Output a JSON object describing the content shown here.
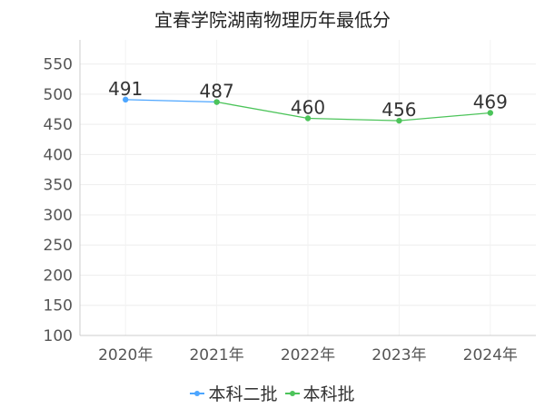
{
  "chart_data": {
    "type": "line",
    "title": "宜春学院湖南物理历年最低分",
    "categories": [
      "2020年",
      "2021年",
      "2022年",
      "2023年",
      "2024年"
    ],
    "y_ticks": [
      "100",
      "150",
      "200",
      "250",
      "300",
      "350",
      "400",
      "450",
      "500",
      "550"
    ],
    "ylim": [
      100,
      590
    ],
    "grid": true,
    "legend_position": "bottom-center",
    "series": [
      {
        "name": "本科二批",
        "color": "#4da6ff",
        "values": [
          491,
          487,
          null,
          null,
          null
        ]
      },
      {
        "name": "本科批",
        "color": "#4cc45a",
        "values": [
          null,
          487,
          460,
          456,
          469
        ]
      }
    ],
    "data_labels": [
      {
        "category": "2020年",
        "value": 491,
        "text": "491"
      },
      {
        "category": "2021年",
        "value": 487,
        "text": "487"
      },
      {
        "category": "2022年",
        "value": 460,
        "text": "460"
      },
      {
        "category": "2023年",
        "value": 456,
        "text": "456"
      },
      {
        "category": "2024年",
        "value": 469,
        "text": "469"
      }
    ]
  }
}
